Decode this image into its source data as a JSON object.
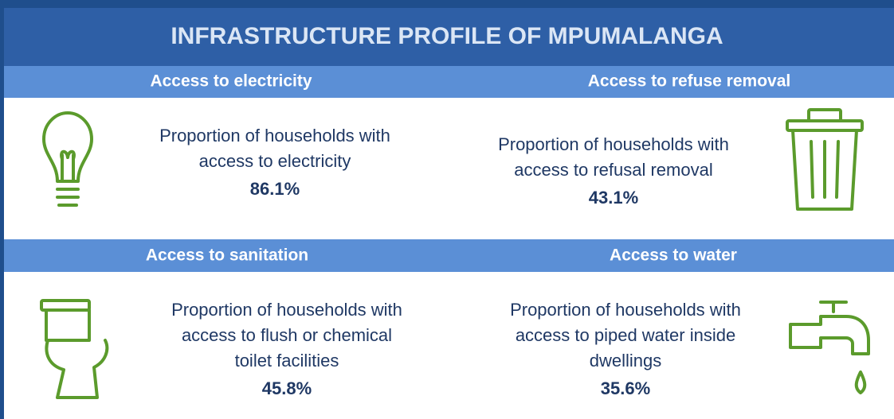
{
  "title": "INFRASTRUCTURE PROFILE OF MPUMALANGA",
  "sections": [
    {
      "heading": "Access to electricity",
      "lines": [
        "Proportion of households with",
        "access to electricity"
      ],
      "value": "86.1%"
    },
    {
      "heading": "Access to refuse removal",
      "lines": [
        "Proportion of households with",
        "access to refusal removal"
      ],
      "value": "43.1%"
    },
    {
      "heading": "Access to sanitation",
      "lines": [
        "Proportion of households with",
        "access to flush or chemical",
        "toilet facilities"
      ],
      "value": "45.8%"
    },
    {
      "heading": "Access to water",
      "lines": [
        "Proportion of households with",
        "access to piped water inside",
        "dwellings"
      ],
      "value": "35.6%"
    }
  ]
}
